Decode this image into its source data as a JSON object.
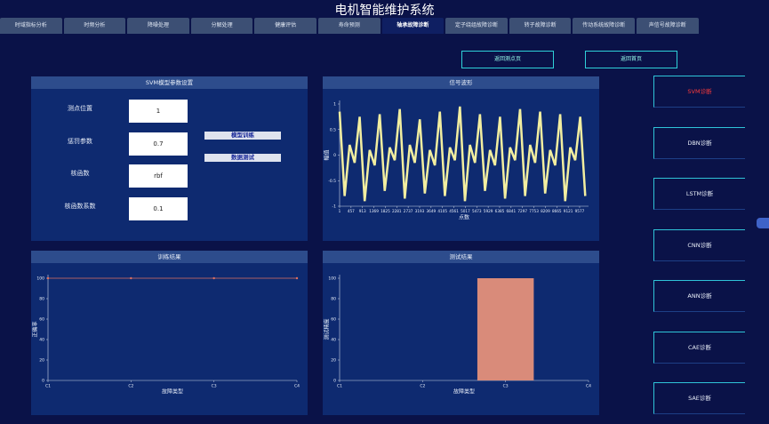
{
  "title": "电机智能维护系统",
  "tabs": [
    "时域指标分析",
    "时频分析",
    "降噪处理",
    "分解处理",
    "健康评估",
    "寿命预测",
    "轴承故障诊断",
    "定子绕组故障诊断",
    "转子故障诊断",
    "传动系统故障诊断",
    "声信号故障诊断"
  ],
  "active_tab": 6,
  "nav_buttons": [
    "返回测点页",
    "返回首页"
  ],
  "param_panel": {
    "title": "SVM模型参数设置",
    "fields": [
      {
        "label": "测点位置",
        "value": "1"
      },
      {
        "label": "惩罚参数",
        "value": "0.7"
      },
      {
        "label": "核函数",
        "value": "rbf"
      },
      {
        "label": "核函数系数",
        "value": "0.1"
      }
    ],
    "buttons": [
      "模型训练",
      "数据测试"
    ]
  },
  "side_buttons": [
    "SVM诊断",
    "DBN诊断",
    "LSTM诊断",
    "CNN诊断",
    "ANN诊断",
    "CAE诊断",
    "SAE诊断"
  ],
  "active_side": 0,
  "chart_data": [
    {
      "type": "line",
      "title": "信号波形",
      "x_label": "点数",
      "y_label": "幅值",
      "color": "#f2eea0",
      "x": [
        1,
        201,
        401,
        601,
        801,
        1001,
        1201,
        1401,
        1601,
        1801,
        2001,
        2201,
        2401,
        2601,
        2801,
        3001,
        3201,
        3401,
        3601,
        3801,
        4001,
        4201,
        4401,
        4601,
        4801,
        5001,
        5201,
        5401,
        5601,
        5801,
        6001,
        6201,
        6401,
        6601,
        6801,
        7001,
        7201,
        7401,
        7601,
        7801,
        8001,
        8201,
        8401,
        8601,
        8801,
        9001,
        9201,
        9401,
        9601,
        9801
      ],
      "values": [
        0.85,
        -0.8,
        0.2,
        -0.15,
        0.75,
        -0.9,
        0.1,
        -0.2,
        0.8,
        -0.7,
        0.15,
        -0.1,
        0.9,
        -0.85,
        0.2,
        -0.15,
        0.7,
        -0.75,
        0.1,
        -0.2,
        0.85,
        -0.8,
        0.15,
        -0.1,
        0.95,
        -0.9,
        0.2,
        -0.15,
        0.8,
        -0.7,
        0.1,
        -0.2,
        0.75,
        -0.85,
        0.15,
        -0.1,
        0.9,
        -0.8,
        0.2,
        -0.15,
        0.85,
        -0.75,
        0.1,
        -0.2,
        0.8,
        -0.9,
        0.15,
        -0.1,
        0.75,
        -0.8
      ],
      "xlim": [
        1,
        9932
      ],
      "xticks": [
        1,
        457,
        913,
        1369,
        1825,
        2281,
        2737,
        3193,
        3649,
        4105,
        4561,
        5017,
        5473,
        5929,
        6385,
        6841,
        7297,
        7753,
        8209,
        8665,
        9121,
        9577
      ],
      "ylim": [
        -1,
        1
      ],
      "yticks": [
        -1,
        -0.5,
        0,
        0.5,
        1
      ]
    },
    {
      "type": "line",
      "title": "训练结果",
      "x_label": "故障类型",
      "y_label": "正确率",
      "color": "#e07060",
      "categories": [
        "C1",
        "C2",
        "C3",
        "C4"
      ],
      "values": [
        100,
        100,
        100,
        100
      ],
      "ylim": [
        0,
        100
      ],
      "yticks": [
        0,
        20,
        40,
        60,
        80,
        100
      ]
    },
    {
      "type": "bar",
      "title": "测试结果",
      "x_label": "故障类型",
      "y_label": "测试精度",
      "color": "#d98b7a",
      "categories": [
        "C1",
        "C2",
        "C3",
        "C4"
      ],
      "values": [
        0,
        0,
        100,
        0
      ],
      "ylim": [
        0,
        100
      ],
      "yticks": [
        0,
        20,
        40,
        60,
        80,
        100
      ]
    }
  ]
}
